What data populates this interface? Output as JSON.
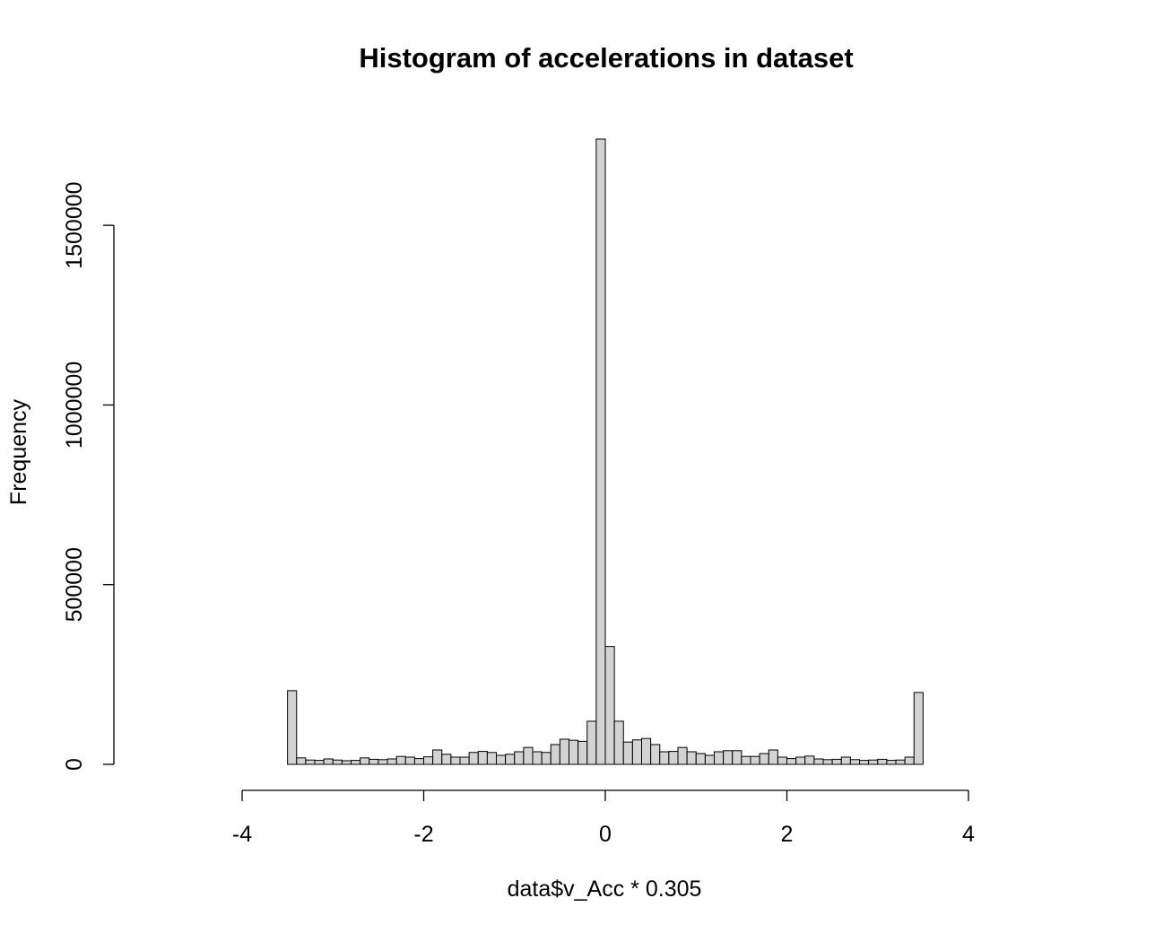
{
  "chart_data": {
    "type": "bar",
    "title": "Histogram of accelerations in dataset",
    "xlabel": "data$v_Acc * 0.305",
    "ylabel": "Frequency",
    "xlim": [
      -4,
      4
    ],
    "ylim": [
      0,
      1740000
    ],
    "x_ticks": [
      -4,
      -2,
      0,
      2,
      4
    ],
    "x_tick_labels": [
      "-4",
      "-2",
      "0",
      "2",
      "4"
    ],
    "y_ticks": [
      0,
      500000,
      1000000,
      1500000
    ],
    "y_tick_labels": [
      "0",
      "500000",
      "1000000",
      "1500000"
    ],
    "bin_width": 0.1,
    "bin_start": -3.5,
    "values": [
      205000,
      18000,
      12000,
      11000,
      15000,
      12000,
      10000,
      11000,
      18000,
      14000,
      13000,
      15000,
      22000,
      20000,
      16000,
      21000,
      40000,
      28000,
      20000,
      20000,
      33000,
      36000,
      33000,
      25000,
      28000,
      35000,
      47000,
      35000,
      33000,
      55000,
      70000,
      67000,
      64000,
      120000,
      1740000,
      328000,
      120000,
      62000,
      68000,
      72000,
      55000,
      35000,
      36000,
      47000,
      35000,
      30000,
      25000,
      35000,
      38000,
      38000,
      22000,
      22000,
      30000,
      40000,
      20000,
      16000,
      20000,
      23000,
      15000,
      13000,
      14000,
      20000,
      13000,
      11000,
      12000,
      14000,
      11000,
      12000,
      20000,
      200000
    ],
    "bar_fill": "#d3d3d3",
    "bar_stroke": "#000000",
    "grid": false,
    "legend": "none"
  }
}
